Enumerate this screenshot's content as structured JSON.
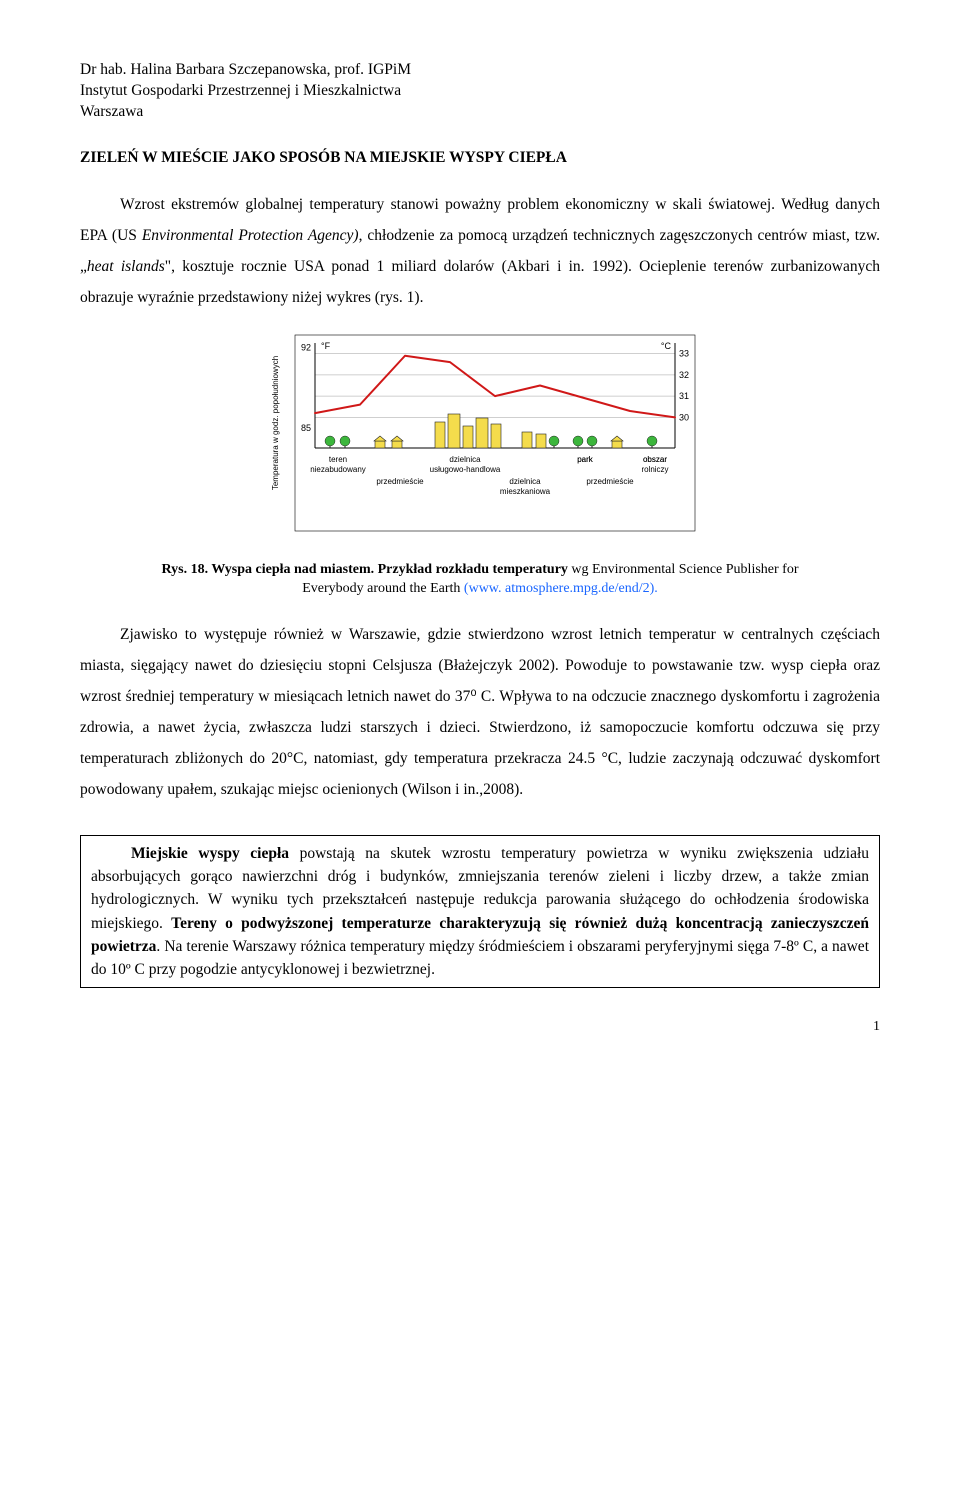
{
  "header": {
    "author_line": "Dr hab. Halina Barbara Szczepanowska, prof. IGPiM",
    "institute": "Instytut Gospodarki Przestrzennej i Mieszkalnictwa",
    "city": "Warszawa"
  },
  "title": "ZIELEŃ W MIEŚCIE JAKO SPOSÓB NA MIEJSKIE WYSPY CIEPŁA",
  "para1_a": "Wzrost ekstremów globalnej temperatury stanowi poważny problem ekonomiczny w skali światowej. Według danych EPA (US ",
  "para1_b": "Environmental Protection Agency)",
  "para1_c": ", chłodzenie za pomocą urządzeń technicznych zagęszczonych centrów miast, tzw. „",
  "para1_d": "heat islands",
  "para1_e": "\", kosztuje rocznie USA ponad 1 miliard dolarów (Akbari i in. 1992). Ocieplenie terenów zurbanizowanych obrazuje wyraźnie przedstawiony niżej wykres (rys. 1).",
  "caption": {
    "lead": "Rys. 18. Wyspa ciepła nad miastem. Przykład rozkładu temperatury ",
    "mid": "wg Environmental Science Publisher for Everybody around the Earth ",
    "link": "(www. atmosphere.mpg.de/end/2)."
  },
  "para2": "Zjawisko to występuje również w Warszawie, gdzie stwierdzono wzrost letnich temperatur w centralnych częściach miasta, sięgający nawet do dziesięciu stopni Celsjusza (Błażejczyk 2002). Powoduje to powstawanie tzw. wysp ciepła oraz wzrost średniej temperatury w miesiącach letnich nawet do 37⁰ C. Wpływa to na odczucie znacznego dyskomfortu i zagrożenia zdrowia, a nawet życia, zwłaszcza ludzi starszych i dzieci. Stwierdzono, iż samopoczucie komfortu odczuwa się przy temperaturach zbliżonych do 20°C, natomiast, gdy temperatura przekracza 24.5 °C, ludzie zaczynają odczuwać dyskomfort powodowany upałem, szukając miejsc ocienionych (Wilson i in.,2008).",
  "box": {
    "lead_bold": "Miejskie wyspy ciepła ",
    "body1": "powstają na skutek wzrostu temperatury powietrza w wyniku zwiększenia udziału absorbujących gorąco nawierzchni dróg i budynków, zmniejszania terenów zieleni i liczby drzew, a także zmian hydrologicznych. W wyniku tych przekształceń następuje redukcja parowania służącego do ochłodzenia środowiska miejskiego. ",
    "sentence2": "Tereny o podwyższonej temperaturze charakteryzują się również dużą koncentracją zanieczyszczeń powietrza",
    "body2": ". Na terenie Warszawy różnica temperatury między śródmieściem i obszarami peryferyjnymi sięga 7-8º C, a nawet do 10º C przy pogodzie antycyklonowej i bezwietrznej."
  },
  "page_number": "1",
  "chart": {
    "type": "line",
    "background_color": "#ffffff",
    "frame_color": "#000000",
    "grid_color": "#bfbfbf",
    "line_color": "#d01818",
    "line_width": 2,
    "y_left_label_vertical": "Temperatura w godz. popołudniowych",
    "y_left_unit": "°F",
    "y_right_unit": "°C",
    "y_left_ticks": [
      85,
      92
    ],
    "y_right_ticks": [
      30,
      31,
      32,
      33
    ],
    "y_right_range": [
      29.5,
      33.5
    ],
    "x_categories": [
      {
        "top": "teren",
        "bottom": "niezabudowany"
      },
      {
        "top": "",
        "bottom": "przedmieście"
      },
      {
        "top": "dzielnica",
        "bottom": "usługowo-handlowa"
      },
      {
        "top": "",
        "bottom": "dzielnica mieszkaniowa"
      },
      {
        "top": "park",
        "bottom": "przedmieście"
      },
      {
        "top": "obszar",
        "bottom": "rolniczy"
      }
    ],
    "series_c": [
      30.2,
      30.6,
      32.9,
      32.6,
      31.0,
      31.5,
      30.9,
      30.3,
      30.0
    ],
    "label_fontsize": 8,
    "axis_fontsize": 9,
    "building_fill": "#f4dc4c",
    "building_stroke": "#222",
    "tree_fill": "#3cb63c"
  }
}
